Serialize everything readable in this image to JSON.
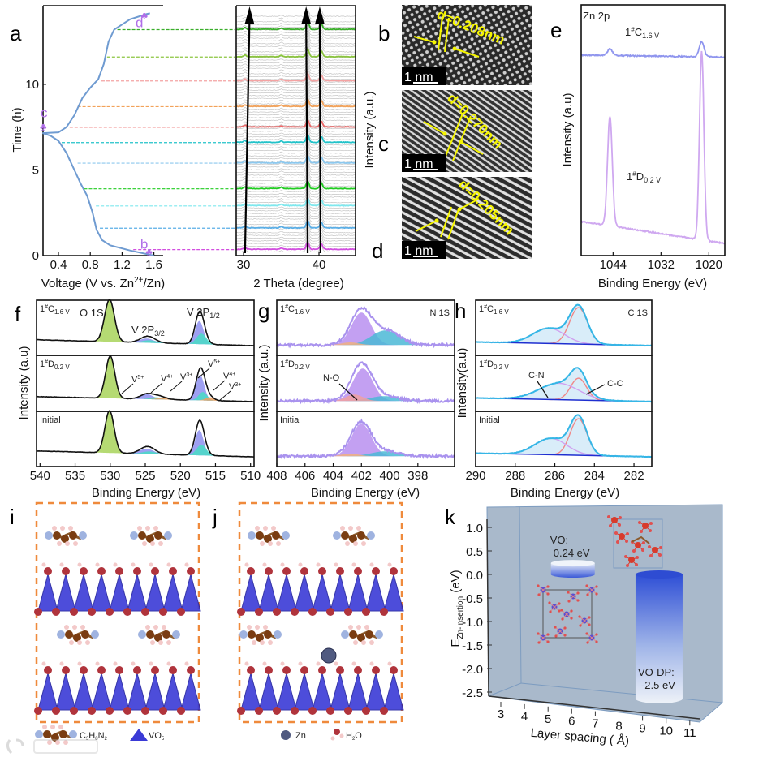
{
  "panel_labels": {
    "a": "a",
    "b": "b",
    "c": "c",
    "d": "d",
    "e": "e",
    "f": "f",
    "g": "g",
    "h": "h",
    "i": "i",
    "j": "j",
    "k": "k"
  },
  "watermark": "大数跨境",
  "sample_labels": {
    "charged": {
      "pre": "1",
      "sup": "#",
      "base": "C",
      "sub": "1.6 V"
    },
    "discharged": {
      "pre": "1",
      "sup": "#",
      "base": "D",
      "sub": "0.2 V"
    },
    "initial": "Initial"
  },
  "tem": [
    {
      "panel": "b",
      "spacing_label": "d=0.208nm",
      "scale_bar": "1 nm"
    },
    {
      "panel": "c",
      "spacing_label": "d=0.270nm",
      "scale_bar": "1 nm"
    },
    {
      "panel": "d",
      "spacing_label": "d=0.205nm",
      "scale_bar": "1 nm"
    }
  ],
  "legend": {
    "molecule": {
      "base": "C",
      "s1": "3",
      "m": "H",
      "s2": "8",
      "n": "N",
      "s3": "2"
    },
    "polyhedron": {
      "base": "VO",
      "sub": "5"
    },
    "zn": "Zn",
    "water": {
      "a": "H",
      "sub": "2",
      "b": "O"
    }
  },
  "chart_data": [
    {
      "id": "a_voltage",
      "type": "line",
      "xlabel": {
        "pre": "Voltage (V vs. Zn",
        "sup": "2+",
        "post": "/Zn)"
      },
      "ylabel": "Time (h)",
      "xlim": [
        0.2,
        1.7
      ],
      "ylim": [
        0,
        14.4
      ],
      "xticks": [
        "0.4",
        "0.8",
        "1.2",
        "1.6"
      ],
      "yticks": [
        "0",
        "5",
        "10"
      ],
      "points": [
        [
          1.6,
          0
        ],
        [
          1.3,
          0.3
        ],
        [
          1.05,
          0.6
        ],
        [
          0.95,
          0.9
        ],
        [
          0.88,
          1.5
        ],
        [
          0.83,
          2.5
        ],
        [
          0.76,
          3.5
        ],
        [
          0.68,
          4.2
        ],
        [
          0.6,
          5
        ],
        [
          0.5,
          6
        ],
        [
          0.4,
          6.7
        ],
        [
          0.3,
          7.0
        ],
        [
          0.2,
          7.15
        ],
        [
          0.4,
          7.2
        ],
        [
          0.5,
          7.5
        ],
        [
          0.6,
          8.2
        ],
        [
          0.7,
          9.2
        ],
        [
          0.8,
          9.8
        ],
        [
          0.9,
          10.3
        ],
        [
          0.97,
          11.2
        ],
        [
          1.03,
          12.5
        ],
        [
          1.1,
          13.2
        ],
        [
          1.3,
          13.8
        ],
        [
          1.5,
          14.1
        ],
        [
          1.55,
          14.15
        ]
      ],
      "markers": [
        {
          "label": "b",
          "v": 1.58,
          "t": 0.3
        },
        {
          "label": "c",
          "v": 0.25,
          "t": 7.6
        },
        {
          "label": "d",
          "v": 1.52,
          "t": 14.1
        }
      ],
      "color": "#6f9bd1",
      "highlight_times": [
        0.35,
        1.6,
        2.9,
        3.9,
        5.4,
        6.6,
        7.5,
        8.7,
        10.2,
        11.6,
        13.2
      ],
      "highlight_colors": [
        "#d24ee0",
        "#5aaee6",
        "#7fe8ee",
        "#22cc22",
        "#8cc8ee",
        "#22c2c9",
        "#ec6a6a",
        "#f2a25a",
        "#f4a3a3",
        "#8bc53f",
        "#3aae2a"
      ]
    },
    {
      "id": "a_xrd",
      "type": "line",
      "xlabel": "2 Theta (degree)",
      "ylabel": "Intensity (a.u.)",
      "xlim": [
        29,
        45
      ],
      "xticks": [
        "30",
        "40"
      ],
      "peaks_deg": [
        30.2,
        35.0,
        38.5,
        40.3
      ],
      "trend_arrows": [
        {
          "from": 30.2,
          "to": 30.8
        },
        {
          "from": 38.5,
          "to": 38.3
        },
        {
          "from": 40.2,
          "to": 40.1
        }
      ]
    },
    {
      "id": "e_zn2p",
      "type": "line",
      "title": "Zn 2p",
      "xlabel": "Binding Energy (eV)",
      "ylabel": "Intensity (a.u)",
      "xlim": [
        1052,
        1016
      ],
      "xticks": [
        "1044",
        "1032",
        "1020"
      ],
      "series": [
        {
          "name": "charged",
          "color": "#8f95ee",
          "baseline": [
            0.86,
            0.85
          ],
          "peaks": [
            {
              "c": 1044.8,
              "h": 0.03,
              "w": 0.6
            },
            {
              "c": 1021.8,
              "h": 0.07,
              "w": 0.6
            }
          ]
        },
        {
          "name": "discharged",
          "color": "#cfa8f0",
          "baseline": [
            0.1,
            0.0
          ],
          "peaks": [
            {
              "c": 1044.8,
              "h": 0.5,
              "w": 0.6
            },
            {
              "c": 1021.8,
              "h": 0.86,
              "w": 0.55
            }
          ]
        }
      ]
    },
    {
      "id": "f_o1s_v2p",
      "type": "line",
      "xlabel": "Binding Energy (eV)",
      "ylabel": "Intensity (a.u)",
      "xlim": [
        540.5,
        509.5
      ],
      "xticks": [
        "540",
        "535",
        "530",
        "525",
        "520",
        "515",
        "510"
      ],
      "annotations": {
        "o1s": "O 1S",
        "v2p32": {
          "t": "V 2P",
          "sub": "3/2"
        },
        "v2p12": {
          "t": "V 2P",
          "sub": "1/2"
        },
        "valence": [
          {
            "t": "V",
            "sup": "5+"
          },
          {
            "t": "V",
            "sup": "4+"
          },
          {
            "t": "V",
            "sup": "3+"
          },
          {
            "t": "V",
            "sup": "5+"
          },
          {
            "t": "V",
            "sup": "4+"
          },
          {
            "t": "V",
            "sup": "3+"
          }
        ]
      },
      "subpanels": [
        {
          "baseline": [
            0.14,
            0.0
          ],
          "peaks": [
            {
              "c": 530.1,
              "h": 1.0,
              "w": 0.7,
              "color": "#a8d45a"
            },
            {
              "c": 524.8,
              "h": 0.1,
              "w": 1.0,
              "color": "#8d8ff0"
            },
            {
              "c": 524.4,
              "h": 0.06,
              "w": 1.0,
              "color": "#48dcc6"
            },
            {
              "c": 517.3,
              "h": 0.55,
              "w": 0.6,
              "color": "#8d8ff0"
            },
            {
              "c": 517.0,
              "h": 0.25,
              "w": 0.7,
              "color": "#48dcc6"
            }
          ]
        },
        {
          "baseline": [
            0.12,
            0.0
          ],
          "peaks": [
            {
              "c": 530.0,
              "h": 1.0,
              "w": 0.65,
              "color": "#a8d45a"
            },
            {
              "c": 524.8,
              "h": 0.12,
              "w": 0.9,
              "color": "#8d8ff0"
            },
            {
              "c": 523.5,
              "h": 0.05,
              "w": 0.8,
              "color": "#48dcc6"
            },
            {
              "c": 522.5,
              "h": 0.04,
              "w": 0.8,
              "color": "#f0a060"
            },
            {
              "c": 517.2,
              "h": 0.6,
              "w": 0.6,
              "color": "#8d8ff0"
            },
            {
              "c": 516.8,
              "h": 0.2,
              "w": 0.6,
              "color": "#48dcc6"
            },
            {
              "c": 515.8,
              "h": 0.08,
              "w": 0.6,
              "color": "#f0a060"
            }
          ]
        },
        {
          "baseline": [
            0.14,
            0.0
          ],
          "peaks": [
            {
              "c": 530.1,
              "h": 1.0,
              "w": 0.65,
              "color": "#a8d45a"
            },
            {
              "c": 524.8,
              "h": 0.12,
              "w": 1.0,
              "color": "#8d8ff0"
            },
            {
              "c": 524.4,
              "h": 0.06,
              "w": 1.0,
              "color": "#48dcc6"
            },
            {
              "c": 517.3,
              "h": 0.6,
              "w": 0.6,
              "color": "#8d8ff0"
            },
            {
              "c": 517.0,
              "h": 0.25,
              "w": 0.7,
              "color": "#48dcc6"
            }
          ]
        }
      ]
    },
    {
      "id": "g_n1s",
      "type": "line",
      "title": "N 1S",
      "xlabel": "Binding Energy (eV)",
      "ylabel": "Intensity (a.u.)",
      "xlim": [
        408,
        395.4
      ],
      "xticks": [
        "408",
        "406",
        "404",
        "402",
        "400",
        "398"
      ],
      "annotation": "N-O",
      "subpanels": [
        {
          "baseline": [
            0.02,
            0.02
          ],
          "peaks": [
            {
              "c": 402.0,
              "h": 1.0,
              "w": 0.7,
              "color": "#b88ff0"
            },
            {
              "c": 400.3,
              "h": 0.45,
              "w": 1.0,
              "color": "#4bb9d6"
            },
            {
              "c": 402.8,
              "h": 0.08,
              "w": 0.6,
              "color": "#f0b080"
            }
          ]
        },
        {
          "baseline": [
            0.02,
            0.02
          ],
          "peaks": [
            {
              "c": 401.9,
              "h": 1.0,
              "w": 0.7,
              "color": "#b88ff0"
            },
            {
              "c": 400.4,
              "h": 0.15,
              "w": 1.0,
              "color": "#4bb9d6"
            },
            {
              "c": 402.5,
              "h": 0.2,
              "w": 0.6,
              "color": "#f0a0a0"
            }
          ]
        },
        {
          "baseline": [
            0.02,
            0.02
          ],
          "peaks": [
            {
              "c": 402.0,
              "h": 1.0,
              "w": 0.7,
              "color": "#b88ff0"
            },
            {
              "c": 400.3,
              "h": 0.15,
              "w": 1.0,
              "color": "#4bb9d6"
            },
            {
              "c": 402.8,
              "h": 0.08,
              "w": 0.6,
              "color": "#f0b080"
            }
          ]
        }
      ]
    },
    {
      "id": "h_c1s",
      "type": "line",
      "title": "C 1S",
      "xlabel": "Binding Energy (eV)",
      "ylabel": "Intensity(a.u)",
      "xlim": [
        290,
        281.1
      ],
      "xticks": [
        "290",
        "288",
        "286",
        "284",
        "282"
      ],
      "annotations": {
        "cn": "C-N",
        "cc": "C-C"
      },
      "subpanels": [
        {
          "baseline": [
            0.1,
            0.0
          ],
          "peaks": [
            {
              "c": 284.8,
              "h": 1.0,
              "w": 0.45,
              "color": "#f08888"
            },
            {
              "c": 286.3,
              "h": 0.42,
              "w": 0.8,
              "color": "#d0a0f0"
            }
          ]
        },
        {
          "baseline": [
            0.1,
            0.0
          ],
          "peaks": [
            {
              "c": 284.8,
              "h": 0.6,
              "w": 0.4,
              "color": "#f08888"
            },
            {
              "c": 285.8,
              "h": 0.45,
              "w": 1.0,
              "color": "#d0a0f0"
            }
          ]
        },
        {
          "baseline": [
            0.1,
            0.0
          ],
          "peaks": [
            {
              "c": 284.8,
              "h": 1.0,
              "w": 0.42,
              "color": "#f08888"
            },
            {
              "c": 286.2,
              "h": 0.45,
              "w": 0.8,
              "color": "#d0a0f0"
            }
          ]
        }
      ]
    },
    {
      "id": "k_insertion_energy",
      "type": "bar",
      "xlabel": "Layer spacing ( Å)",
      "ylabel": {
        "base": "E",
        "sub": "Zn-insertion",
        "unit": " (eV)"
      },
      "xlim": [
        3,
        11
      ],
      "ylim": [
        -2.5,
        1.0
      ],
      "xticks": [
        "3",
        "4",
        "5",
        "6",
        "7",
        "8",
        "9",
        "10",
        "11"
      ],
      "yticks": [
        "1.0",
        "0.5",
        "0.0",
        "-0.5",
        "-1.0",
        "-1.5",
        "-2.0",
        "-2.5"
      ],
      "bars": [
        {
          "name": "VO",
          "label": "VO:",
          "value_label": "0.24 eV",
          "spacing": 5.5,
          "value": 0.24
        },
        {
          "name": "VO-DP",
          "label": "VO-DP:",
          "value_label": "-2.5 eV",
          "spacing": 8.6,
          "value": -2.5
        }
      ]
    }
  ]
}
